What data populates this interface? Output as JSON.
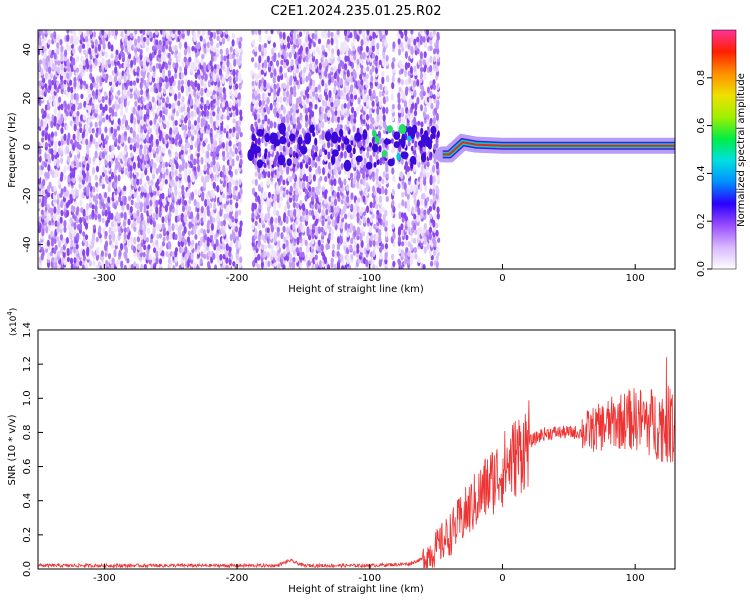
{
  "title": "C2E1.2024.235.01.25.R02",
  "colors": {
    "spectro_low": "#ecdcfb",
    "spectro_mid": "#7b2ff2",
    "spectro_high": "#3a00c8",
    "signal": "#ee3333",
    "axis": "#000000"
  },
  "chart_data": [
    {
      "type": "heatmap",
      "xlabel": "Height of straight line (km)",
      "ylabel": "Frequency (Hz)",
      "xlim": [
        -350,
        130
      ],
      "ylim": [
        -50,
        48
      ],
      "xticks": [
        -300,
        -200,
        -100,
        0,
        100
      ],
      "yticks": [
        -40,
        -20,
        0,
        20,
        40
      ],
      "grid": false,
      "ridge": {
        "description_x": [
          -45,
          -40,
          -30,
          -20,
          0,
          50,
          100,
          130
        ],
        "frequency_hz": [
          -3,
          -3,
          2,
          1,
          0.5,
          0.5,
          0.5,
          0.5
        ]
      },
      "colorbar": {
        "label": "Normalized spectral amplitude",
        "range": [
          0,
          1
        ],
        "ticks": [
          0.0,
          0.2,
          0.4,
          0.6,
          0.8
        ],
        "tick_labels": [
          "0.0",
          "0.2",
          "0.4",
          "0.6",
          "0.8"
        ],
        "colors": [
          "#ffffff",
          "#d9b8ff",
          "#9a4dff",
          "#2a00ff",
          "#0090ff",
          "#00e0e0",
          "#00ee44",
          "#a0f000",
          "#f0e000",
          "#ff9000",
          "#ff2000",
          "#ff3399"
        ]
      }
    },
    {
      "type": "line",
      "xlabel": "Height of straight line (km)",
      "ylabel": "SNR (10 * v/v)",
      "scale_label_base": "(x10",
      "scale_label_exp": "4",
      "scale_label_end": ")",
      "xlim": [
        -350,
        130
      ],
      "ylim": [
        0,
        1.4
      ],
      "xticks": [
        -300,
        -200,
        -100,
        0,
        100
      ],
      "yticks": [
        0.0,
        0.2,
        0.4,
        0.6,
        0.8,
        1.0,
        1.2,
        1.4
      ],
      "ytick_labels": [
        "0.0",
        "0.2",
        "0.4",
        "0.6",
        "0.8",
        "1.0",
        "1.2",
        "1.4"
      ],
      "grid": false,
      "series": [
        {
          "x": [
            -350,
            -300,
            -250,
            -200,
            -170,
            -160,
            -150,
            -100,
            -70,
            -60,
            -50,
            -40,
            -30,
            -20,
            -10,
            0,
            10,
            20,
            30,
            40,
            50,
            60,
            70,
            80,
            90,
            100,
            110,
            120,
            130
          ],
          "y": [
            0.02,
            0.02,
            0.02,
            0.02,
            0.02,
            0.05,
            0.02,
            0.02,
            0.03,
            0.06,
            0.12,
            0.2,
            0.3,
            0.4,
            0.5,
            0.58,
            0.66,
            0.74,
            0.79,
            0.8,
            0.8,
            0.8,
            0.82,
            0.85,
            0.87,
            0.88,
            0.86,
            0.85,
            0.84
          ]
        }
      ]
    }
  ]
}
